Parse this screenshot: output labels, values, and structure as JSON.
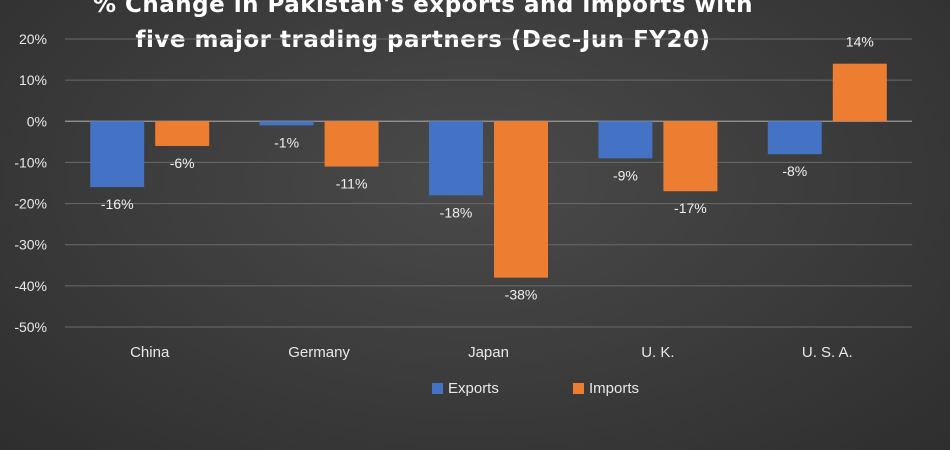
{
  "chart_data": {
    "type": "bar",
    "title": [
      "% Change in Pakistan's exports and imports with",
      "five major trading partners (Dec-Jun FY20)"
    ],
    "categories": [
      "China",
      "Germany",
      "Japan",
      "U. K.",
      "U. S. A."
    ],
    "series": [
      {
        "name": "Exports",
        "color": "#4472c4",
        "values": [
          -16,
          -1,
          -18,
          -9,
          -8
        ],
        "labels": [
          "-16%",
          "-1%",
          "-18%",
          "-9%",
          "-8%"
        ]
      },
      {
        "name": "Imports",
        "color": "#ed7d31",
        "values": [
          -6,
          -11,
          -38,
          -17,
          14
        ],
        "labels": [
          "-6%",
          "-11%",
          "-38%",
          "-17%",
          "14%"
        ]
      }
    ],
    "ylim": [
      -50,
      20
    ],
    "yticks": [
      20,
      10,
      0,
      -10,
      -20,
      -30,
      -40,
      -50
    ],
    "ytick_labels": [
      "20%",
      "10%",
      "0%",
      "-10%",
      "-20%",
      "-30%",
      "-40%",
      "-50%"
    ],
    "grid": true,
    "legend_position": "bottom",
    "xlabel": "",
    "ylabel": ""
  }
}
